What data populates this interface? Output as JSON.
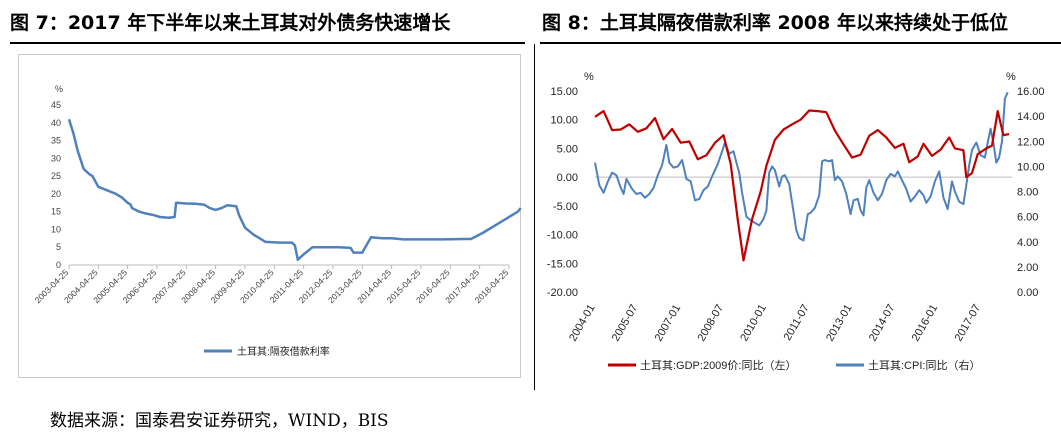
{
  "titles": {
    "left": "图 7：2017 年下半年以来土耳其对外债务快速增长",
    "right": "图 8：土耳其隔夜借款利率 2008 年以来持续处于低位"
  },
  "source": "数据来源：国泰君安证券研究，WIND，BIS",
  "colors": {
    "left_line": "#4f81bd",
    "gdp": "#c00000",
    "cpi": "#4f81bd"
  },
  "chart_data": [
    {
      "type": "line",
      "unit_label": "%",
      "ylim": [
        0,
        45
      ],
      "yticks": [
        0,
        5,
        10,
        15,
        20,
        25,
        30,
        35,
        40,
        45
      ],
      "xtick_labels": [
        "2003-04-25",
        "2004-04-25",
        "2005-04-25",
        "2006-04-25",
        "2007-04-25",
        "2008-04-25",
        "2009-04-25",
        "2010-04-25",
        "2011-04-25",
        "2012-04-25",
        "2013-04-25",
        "2014-04-25",
        "2015-04-25",
        "2016-04-25",
        "2017-04-25",
        "2018-04-25"
      ],
      "legend_position": "bottom",
      "series": [
        {
          "name": "土耳其:隔夜借款利率",
          "points": [
            [
              2003.3,
              41
            ],
            [
              2003.45,
              37
            ],
            [
              2003.6,
              32
            ],
            [
              2003.8,
              27
            ],
            [
              2004.0,
              25.5
            ],
            [
              2004.1,
              25
            ],
            [
              2004.3,
              22
            ],
            [
              2004.6,
              21
            ],
            [
              2004.9,
              20
            ],
            [
              2005.1,
              19
            ],
            [
              2005.3,
              17.5
            ],
            [
              2005.4,
              17
            ],
            [
              2005.45,
              16
            ],
            [
              2005.7,
              15
            ],
            [
              2005.9,
              14.5
            ],
            [
              2006.2,
              14
            ],
            [
              2006.4,
              13.5
            ],
            [
              2006.7,
              13.3
            ],
            [
              2006.9,
              13.5
            ],
            [
              2006.95,
              17.5
            ],
            [
              2007.3,
              17.3
            ],
            [
              2007.6,
              17.2
            ],
            [
              2007.9,
              17
            ],
            [
              2008.1,
              16
            ],
            [
              2008.3,
              15.5
            ],
            [
              2008.5,
              16
            ],
            [
              2008.7,
              16.8
            ],
            [
              2009.0,
              16.5
            ],
            [
              2009.1,
              14
            ],
            [
              2009.3,
              10.5
            ],
            [
              2009.6,
              8.5
            ],
            [
              2009.8,
              7.5
            ],
            [
              2010.0,
              6.5
            ],
            [
              2010.5,
              6.3
            ],
            [
              2010.9,
              6.3
            ],
            [
              2011.0,
              5.5
            ],
            [
              2011.1,
              1.5
            ],
            [
              2011.3,
              3
            ],
            [
              2011.6,
              5
            ],
            [
              2012.0,
              5
            ],
            [
              2012.5,
              5
            ],
            [
              2012.9,
              4.8
            ],
            [
              2013.0,
              3.5
            ],
            [
              2013.3,
              3.5
            ],
            [
              2013.4,
              5
            ],
            [
              2013.6,
              7.8
            ],
            [
              2014.0,
              7.5
            ],
            [
              2014.3,
              7.5
            ],
            [
              2014.7,
              7.2
            ],
            [
              2015.5,
              7.2
            ],
            [
              2016.0,
              7.2
            ],
            [
              2016.8,
              7.3
            ],
            [
              2017.0,
              7.3
            ],
            [
              2017.4,
              9
            ],
            [
              2017.8,
              11
            ],
            [
              2018.2,
              13
            ],
            [
              2018.6,
              15
            ],
            [
              2018.7,
              16
            ]
          ]
        }
      ]
    },
    {
      "type": "line",
      "unit_label_left": "%",
      "unit_label_right": "%",
      "ylim_left": [
        -20,
        15
      ],
      "yticks_left": [
        "15.00",
        "10.00",
        "5.00",
        "0.00",
        "-5.00",
        "-10.00",
        "-15.00",
        "-20.00"
      ],
      "ylim_right": [
        0,
        16
      ],
      "yticks_right": [
        "16.00",
        "14.00",
        "12.00",
        "10.00",
        "8.00",
        "6.00",
        "4.00",
        "2.00",
        "0.00"
      ],
      "xtick_labels": [
        "2004-01",
        "2005-07",
        "2007-01",
        "2008-07",
        "2010-01",
        "2011-07",
        "2013-01",
        "2014-07",
        "2016-01",
        "2017-07"
      ],
      "legend_position": "bottom",
      "series": [
        {
          "name": "土耳其:GDP:2009价:同比（左）",
          "axis": "left",
          "points": [
            [
              2004.0,
              10.5
            ],
            [
              2004.3,
              11.5
            ],
            [
              2004.6,
              8.2
            ],
            [
              2004.9,
              8.3
            ],
            [
              2005.2,
              9.2
            ],
            [
              2005.5,
              7.9
            ],
            [
              2005.8,
              8.5
            ],
            [
              2006.1,
              10.3
            ],
            [
              2006.4,
              6.6
            ],
            [
              2006.7,
              8.4
            ],
            [
              2007.0,
              6
            ],
            [
              2007.3,
              6.2
            ],
            [
              2007.6,
              3.1
            ],
            [
              2007.9,
              3.8
            ],
            [
              2008.2,
              6
            ],
            [
              2008.5,
              7.3
            ],
            [
              2008.75,
              2.3
            ],
            [
              2009.0,
              -7.5
            ],
            [
              2009.2,
              -14.5
            ],
            [
              2009.5,
              -7.3
            ],
            [
              2009.8,
              -2.5
            ],
            [
              2010.0,
              2
            ],
            [
              2010.3,
              6.5
            ],
            [
              2010.6,
              8.3
            ],
            [
              2010.9,
              9.2
            ],
            [
              2011.2,
              10
            ],
            [
              2011.5,
              11.6
            ],
            [
              2011.8,
              11.5
            ],
            [
              2012.1,
              11.3
            ],
            [
              2012.4,
              8.1
            ],
            [
              2012.7,
              5.7
            ],
            [
              2013.0,
              3.4
            ],
            [
              2013.3,
              3.9
            ],
            [
              2013.6,
              7.2
            ],
            [
              2013.9,
              8.2
            ],
            [
              2014.2,
              6.9
            ],
            [
              2014.5,
              5.1
            ],
            [
              2014.8,
              5.8
            ],
            [
              2015.0,
              2.6
            ],
            [
              2015.3,
              3.6
            ],
            [
              2015.5,
              5.8
            ],
            [
              2015.8,
              3.7
            ],
            [
              2016.1,
              4.8
            ],
            [
              2016.4,
              6.9
            ],
            [
              2016.6,
              5
            ],
            [
              2016.9,
              4.7
            ],
            [
              2017.0,
              0
            ],
            [
              2017.2,
              0.7
            ],
            [
              2017.4,
              4
            ],
            [
              2017.7,
              5
            ],
            [
              2017.9,
              5.5
            ],
            [
              2018.1,
              11.5
            ],
            [
              2018.3,
              7.3
            ],
            [
              2018.5,
              7.5
            ]
          ]
        },
        {
          "name": "土耳其:CPI:同比（右）",
          "axis": "right",
          "points": [
            [
              2004.0,
              10.3
            ],
            [
              2004.15,
              8.5
            ],
            [
              2004.3,
              7.9
            ],
            [
              2004.45,
              8.8
            ],
            [
              2004.6,
              9.5
            ],
            [
              2004.75,
              9.3
            ],
            [
              2004.9,
              8.3
            ],
            [
              2005.0,
              7.8
            ],
            [
              2005.1,
              9
            ],
            [
              2005.3,
              8.2
            ],
            [
              2005.45,
              7.8
            ],
            [
              2005.6,
              7.9
            ],
            [
              2005.75,
              7.5
            ],
            [
              2005.9,
              7.8
            ],
            [
              2006.05,
              8.3
            ],
            [
              2006.2,
              9.3
            ],
            [
              2006.35,
              10.1
            ],
            [
              2006.5,
              11.7
            ],
            [
              2006.6,
              10.3
            ],
            [
              2006.75,
              9.9
            ],
            [
              2006.9,
              10
            ],
            [
              2007.05,
              10.5
            ],
            [
              2007.2,
              9
            ],
            [
              2007.35,
              8.8
            ],
            [
              2007.5,
              7.3
            ],
            [
              2007.65,
              7.4
            ],
            [
              2007.8,
              8.1
            ],
            [
              2007.95,
              8.4
            ],
            [
              2008.1,
              9.2
            ],
            [
              2008.3,
              10.2
            ],
            [
              2008.45,
              11.2
            ],
            [
              2008.55,
              11.9
            ],
            [
              2008.7,
              11
            ],
            [
              2008.85,
              11.2
            ],
            [
              2008.95,
              10.3
            ],
            [
              2009.05,
              9.5
            ],
            [
              2009.15,
              7.9
            ],
            [
              2009.3,
              6
            ],
            [
              2009.45,
              5.7
            ],
            [
              2009.6,
              5.5
            ],
            [
              2009.75,
              5.3
            ],
            [
              2009.9,
              5.8
            ],
            [
              2010.0,
              6.5
            ],
            [
              2010.1,
              9.5
            ],
            [
              2010.2,
              10
            ],
            [
              2010.3,
              9.7
            ],
            [
              2010.45,
              8.4
            ],
            [
              2010.55,
              9.2
            ],
            [
              2010.65,
              9.3
            ],
            [
              2010.8,
              8.6
            ],
            [
              2010.95,
              6.4
            ],
            [
              2011.05,
              4.9
            ],
            [
              2011.15,
              4.3
            ],
            [
              2011.3,
              4.1
            ],
            [
              2011.45,
              6.2
            ],
            [
              2011.55,
              6.3
            ],
            [
              2011.7,
              6.7
            ],
            [
              2011.85,
              7.7
            ],
            [
              2011.95,
              10.4
            ],
            [
              2012.05,
              10.5
            ],
            [
              2012.2,
              10.4
            ],
            [
              2012.3,
              10.5
            ],
            [
              2012.4,
              8.9
            ],
            [
              2012.5,
              9.2
            ],
            [
              2012.65,
              8.8
            ],
            [
              2012.8,
              7.8
            ],
            [
              2012.95,
              6.2
            ],
            [
              2013.05,
              7.3
            ],
            [
              2013.2,
              7.4
            ],
            [
              2013.3,
              6.5
            ],
            [
              2013.4,
              6.1
            ],
            [
              2013.5,
              8.3
            ],
            [
              2013.6,
              8.9
            ],
            [
              2013.75,
              7.9
            ],
            [
              2013.9,
              7.3
            ],
            [
              2014.05,
              7.8
            ],
            [
              2014.2,
              8.9
            ],
            [
              2014.35,
              9.4
            ],
            [
              2014.5,
              9.2
            ],
            [
              2014.6,
              9.6
            ],
            [
              2014.75,
              8.9
            ],
            [
              2014.9,
              8.2
            ],
            [
              2015.05,
              7.2
            ],
            [
              2015.2,
              7.6
            ],
            [
              2015.35,
              8.1
            ],
            [
              2015.5,
              7.7
            ],
            [
              2015.6,
              7.1
            ],
            [
              2015.75,
              7.6
            ],
            [
              2015.9,
              8.8
            ],
            [
              2016.05,
              9.6
            ],
            [
              2016.2,
              7.5
            ],
            [
              2016.35,
              6.6
            ],
            [
              2016.5,
              8.8
            ],
            [
              2016.6,
              8
            ],
            [
              2016.75,
              7.2
            ],
            [
              2016.9,
              7
            ],
            [
              2017.0,
              8.5
            ],
            [
              2017.1,
              10.1
            ],
            [
              2017.2,
              11.3
            ],
            [
              2017.35,
              11.9
            ],
            [
              2017.5,
              10.9
            ],
            [
              2017.65,
              10.7
            ],
            [
              2017.75,
              11.9
            ],
            [
              2017.85,
              13
            ],
            [
              2017.95,
              11.9
            ],
            [
              2018.05,
              10.3
            ],
            [
              2018.15,
              10.7
            ],
            [
              2018.25,
              12
            ],
            [
              2018.35,
              15.4
            ],
            [
              2018.45,
              15.9
            ]
          ]
        }
      ]
    }
  ]
}
